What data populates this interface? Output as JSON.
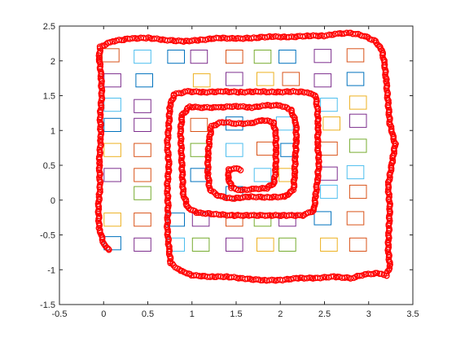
{
  "chart_data": {
    "type": "scatter",
    "title": "",
    "xlabel": "",
    "ylabel": "",
    "xlim": [
      -0.5,
      3.5
    ],
    "ylim": [
      -1.5,
      2.5
    ],
    "xticks": [
      -0.5,
      0,
      0.5,
      1,
      1.5,
      2,
      2.5,
      3,
      3.5
    ],
    "xtick_labels": [
      "-0.5",
      "0",
      "0.5",
      "1",
      "1.5",
      "2",
      "2.5",
      "3",
      "3.5"
    ],
    "yticks": [
      -1.5,
      -1,
      -0.5,
      0,
      0.5,
      1,
      1.5,
      2,
      2.5
    ],
    "ytick_labels": [
      "-1.5",
      "-1",
      "-0.5",
      "0",
      "0.5",
      "1",
      "1.5",
      "2",
      "2.5"
    ],
    "grid": false,
    "box": true,
    "trajectory": {
      "color": "#ff0000",
      "marker": "circle",
      "points": [
        [
          0.06,
          -0.72
        ],
        [
          0.0,
          -0.62
        ],
        [
          -0.05,
          -0.4
        ],
        [
          -0.06,
          -0.1
        ],
        [
          -0.04,
          0.2
        ],
        [
          -0.05,
          0.55
        ],
        [
          -0.03,
          0.9
        ],
        [
          -0.04,
          1.2
        ],
        [
          -0.02,
          1.5
        ],
        [
          -0.03,
          1.8
        ],
        [
          -0.05,
          2.05
        ],
        [
          -0.04,
          2.2
        ],
        [
          0.1,
          2.28
        ],
        [
          0.3,
          2.32
        ],
        [
          0.5,
          2.33
        ],
        [
          0.7,
          2.3
        ],
        [
          0.9,
          2.28
        ],
        [
          1.1,
          2.3
        ],
        [
          1.3,
          2.33
        ],
        [
          1.5,
          2.32
        ],
        [
          1.7,
          2.33
        ],
        [
          1.9,
          2.35
        ],
        [
          2.1,
          2.34
        ],
        [
          2.3,
          2.36
        ],
        [
          2.5,
          2.36
        ],
        [
          2.65,
          2.39
        ],
        [
          2.8,
          2.4
        ],
        [
          2.95,
          2.36
        ],
        [
          3.08,
          2.28
        ],
        [
          3.15,
          2.15
        ],
        [
          3.18,
          1.95
        ],
        [
          3.2,
          1.7
        ],
        [
          3.22,
          1.4
        ],
        [
          3.24,
          1.1
        ],
        [
          3.3,
          0.8
        ],
        [
          3.26,
          0.5
        ],
        [
          3.22,
          0.2
        ],
        [
          3.24,
          -0.1
        ],
        [
          3.23,
          -0.4
        ],
        [
          3.22,
          -0.7
        ],
        [
          3.24,
          -0.95
        ],
        [
          3.2,
          -1.08
        ],
        [
          3.1,
          -1.05
        ],
        [
          2.95,
          -1.07
        ],
        [
          2.8,
          -1.12
        ],
        [
          2.6,
          -1.1
        ],
        [
          2.4,
          -1.12
        ],
        [
          2.2,
          -1.12
        ],
        [
          2.0,
          -1.15
        ],
        [
          1.8,
          -1.15
        ],
        [
          1.6,
          -1.13
        ],
        [
          1.4,
          -1.1
        ],
        [
          1.2,
          -1.1
        ],
        [
          1.0,
          -1.08
        ],
        [
          0.85,
          -1.0
        ],
        [
          0.76,
          -0.9
        ],
        [
          0.74,
          -0.7
        ],
        [
          0.72,
          -0.4
        ],
        [
          0.73,
          -0.1
        ],
        [
          0.72,
          0.2
        ],
        [
          0.74,
          0.5
        ],
        [
          0.72,
          0.8
        ],
        [
          0.74,
          1.1
        ],
        [
          0.75,
          1.35
        ],
        [
          0.8,
          1.52
        ],
        [
          0.95,
          1.56
        ],
        [
          1.15,
          1.55
        ],
        [
          1.35,
          1.56
        ],
        [
          1.55,
          1.55
        ],
        [
          1.75,
          1.56
        ],
        [
          1.95,
          1.55
        ],
        [
          2.15,
          1.56
        ],
        [
          2.3,
          1.55
        ],
        [
          2.4,
          1.5
        ],
        [
          2.42,
          1.3
        ],
        [
          2.43,
          1.05
        ],
        [
          2.42,
          0.8
        ],
        [
          2.44,
          0.55
        ],
        [
          2.42,
          0.3
        ],
        [
          2.4,
          0.05
        ],
        [
          2.38,
          -0.15
        ],
        [
          2.25,
          -0.22
        ],
        [
          2.05,
          -0.22
        ],
        [
          1.85,
          -0.22
        ],
        [
          1.65,
          -0.22
        ],
        [
          1.45,
          -0.22
        ],
        [
          1.25,
          -0.2
        ],
        [
          1.05,
          -0.18
        ],
        [
          0.95,
          -0.1
        ],
        [
          0.9,
          0.1
        ],
        [
          0.89,
          0.4
        ],
        [
          0.88,
          0.7
        ],
        [
          0.87,
          1.0
        ],
        [
          0.89,
          1.22
        ],
        [
          0.97,
          1.34
        ],
        [
          1.12,
          1.33
        ],
        [
          1.3,
          1.33
        ],
        [
          1.5,
          1.35
        ],
        [
          1.68,
          1.33
        ],
        [
          1.85,
          1.36
        ],
        [
          2.0,
          1.36
        ],
        [
          2.12,
          1.3
        ],
        [
          2.18,
          1.1
        ],
        [
          2.18,
          0.85
        ],
        [
          2.17,
          0.6
        ],
        [
          2.16,
          0.35
        ],
        [
          2.15,
          0.15
        ],
        [
          2.05,
          0.05
        ],
        [
          1.85,
          0.04
        ],
        [
          1.65,
          0.05
        ],
        [
          1.45,
          0.02
        ],
        [
          1.3,
          0.06
        ],
        [
          1.2,
          0.15
        ],
        [
          1.18,
          0.4
        ],
        [
          1.18,
          0.65
        ],
        [
          1.2,
          0.88
        ],
        [
          1.22,
          1.06
        ],
        [
          1.34,
          1.12
        ],
        [
          1.5,
          1.1
        ],
        [
          1.66,
          1.1
        ],
        [
          1.8,
          1.15
        ],
        [
          1.92,
          1.12
        ],
        [
          1.95,
          0.95
        ],
        [
          1.95,
          0.7
        ],
        [
          1.95,
          0.45
        ],
        [
          1.93,
          0.25
        ],
        [
          1.85,
          0.17
        ],
        [
          1.7,
          0.16
        ],
        [
          1.55,
          0.14
        ],
        [
          1.45,
          0.18
        ],
        [
          1.41,
          0.32
        ],
        [
          1.42,
          0.44
        ],
        [
          1.5,
          0.46
        ],
        [
          1.55,
          0.43
        ]
      ]
    },
    "rectangles": [
      {
        "x": 0.08,
        "y": 2.08,
        "color": "#d95319"
      },
      {
        "x": 0.44,
        "y": 2.06,
        "color": "#4dbeee"
      },
      {
        "x": 0.82,
        "y": 2.06,
        "color": "#0072bd"
      },
      {
        "x": 1.08,
        "y": 2.06,
        "color": "#7e2f8e"
      },
      {
        "x": 1.48,
        "y": 2.06,
        "color": "#d95319"
      },
      {
        "x": 1.8,
        "y": 2.06,
        "color": "#77ac30"
      },
      {
        "x": 2.08,
        "y": 2.06,
        "color": "#0072bd"
      },
      {
        "x": 2.48,
        "y": 2.07,
        "color": "#7e2f8e"
      },
      {
        "x": 2.85,
        "y": 2.08,
        "color": "#d95319"
      },
      {
        "x": 0.1,
        "y": 1.72,
        "color": "#7e2f8e"
      },
      {
        "x": 0.46,
        "y": 1.72,
        "color": "#0072bd"
      },
      {
        "x": 1.11,
        "y": 1.72,
        "color": "#edb120"
      },
      {
        "x": 1.48,
        "y": 1.74,
        "color": "#7e2f8e"
      },
      {
        "x": 1.83,
        "y": 1.74,
        "color": "#edb120"
      },
      {
        "x": 2.12,
        "y": 1.74,
        "color": "#d95319"
      },
      {
        "x": 2.48,
        "y": 1.72,
        "color": "#7e2f8e"
      },
      {
        "x": 2.85,
        "y": 1.74,
        "color": "#0072bd"
      },
      {
        "x": 0.1,
        "y": 1.37,
        "color": "#4dbeee"
      },
      {
        "x": 0.44,
        "y": 1.35,
        "color": "#7e2f8e"
      },
      {
        "x": 2.55,
        "y": 1.37,
        "color": "#4dbeee"
      },
      {
        "x": 2.88,
        "y": 1.4,
        "color": "#edb120"
      },
      {
        "x": 0.1,
        "y": 1.08,
        "color": "#0072bd"
      },
      {
        "x": 0.44,
        "y": 1.08,
        "color": "#7e2f8e"
      },
      {
        "x": 1.08,
        "y": 1.08,
        "color": "#d95319"
      },
      {
        "x": 1.48,
        "y": 1.1,
        "color": "#0072bd"
      },
      {
        "x": 2.05,
        "y": 1.1,
        "color": "#4dbeee"
      },
      {
        "x": 2.58,
        "y": 1.1,
        "color": "#edb120"
      },
      {
        "x": 2.88,
        "y": 1.14,
        "color": "#7e2f8e"
      },
      {
        "x": 0.1,
        "y": 0.72,
        "color": "#edb120"
      },
      {
        "x": 0.44,
        "y": 0.72,
        "color": "#d95319"
      },
      {
        "x": 1.08,
        "y": 0.72,
        "color": "#77ac30"
      },
      {
        "x": 1.48,
        "y": 0.72,
        "color": "#4dbeee"
      },
      {
        "x": 1.83,
        "y": 0.74,
        "color": "#d95319"
      },
      {
        "x": 2.1,
        "y": 0.72,
        "color": "#0072bd"
      },
      {
        "x": 2.55,
        "y": 0.74,
        "color": "#d95319"
      },
      {
        "x": 2.88,
        "y": 0.78,
        "color": "#77ac30"
      },
      {
        "x": 0.1,
        "y": 0.36,
        "color": "#7e2f8e"
      },
      {
        "x": 0.44,
        "y": 0.36,
        "color": "#d95319"
      },
      {
        "x": 1.08,
        "y": 0.36,
        "color": "#0072bd"
      },
      {
        "x": 1.8,
        "y": 0.36,
        "color": "#4dbeee"
      },
      {
        "x": 2.08,
        "y": 0.36,
        "color": "#edb120"
      },
      {
        "x": 2.55,
        "y": 0.38,
        "color": "#7e2f8e"
      },
      {
        "x": 2.85,
        "y": 0.4,
        "color": "#4dbeee"
      },
      {
        "x": 0.44,
        "y": 0.1,
        "color": "#77ac30"
      },
      {
        "x": 1.48,
        "y": 0.1,
        "color": "#0072bd"
      },
      {
        "x": 2.55,
        "y": 0.12,
        "color": "#4dbeee"
      },
      {
        "x": 2.88,
        "y": 0.12,
        "color": "#d95319"
      },
      {
        "x": 0.1,
        "y": -0.28,
        "color": "#edb120"
      },
      {
        "x": 0.44,
        "y": -0.28,
        "color": "#d95319"
      },
      {
        "x": 0.82,
        "y": -0.28,
        "color": "#0072bd"
      },
      {
        "x": 1.1,
        "y": -0.28,
        "color": "#7e2f8e"
      },
      {
        "x": 1.48,
        "y": -0.28,
        "color": "#d95319"
      },
      {
        "x": 1.8,
        "y": -0.28,
        "color": "#77ac30"
      },
      {
        "x": 2.08,
        "y": -0.28,
        "color": "#7e2f8e"
      },
      {
        "x": 2.48,
        "y": -0.26,
        "color": "#0072bd"
      },
      {
        "x": 2.85,
        "y": -0.26,
        "color": "#d95319"
      },
      {
        "x": 0.1,
        "y": -0.62,
        "color": "#0072bd"
      },
      {
        "x": 0.44,
        "y": -0.64,
        "color": "#7e2f8e"
      },
      {
        "x": 0.82,
        "y": -0.64,
        "color": "#4dbeee"
      },
      {
        "x": 1.1,
        "y": -0.64,
        "color": "#77ac30"
      },
      {
        "x": 1.48,
        "y": -0.64,
        "color": "#7e2f8e"
      },
      {
        "x": 1.83,
        "y": -0.64,
        "color": "#edb120"
      },
      {
        "x": 2.08,
        "y": -0.64,
        "color": "#77ac30"
      },
      {
        "x": 2.55,
        "y": -0.64,
        "color": "#edb120"
      },
      {
        "x": 2.88,
        "y": -0.64,
        "color": "#d95319"
      }
    ]
  }
}
